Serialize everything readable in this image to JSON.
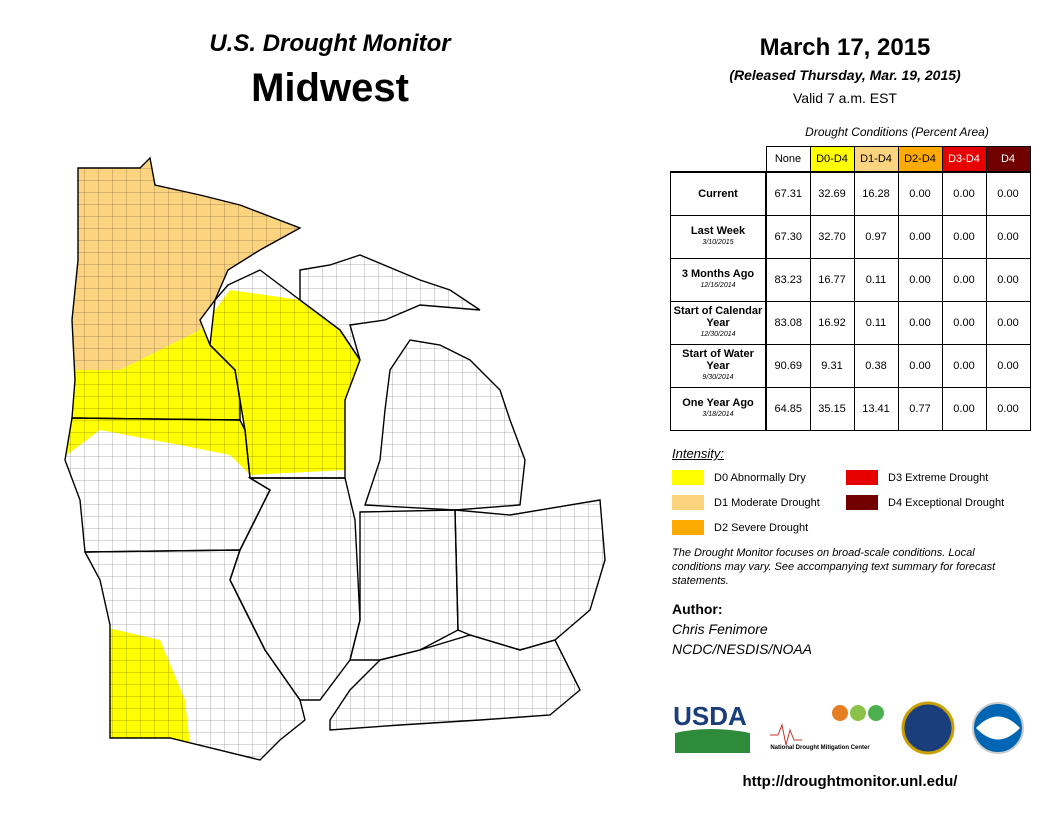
{
  "header": {
    "title": "U.S. Drought Monitor",
    "region": "Midwest",
    "date": "March 17, 2015",
    "released": "(Released Thursday, Mar. 19, 2015)",
    "valid": "Valid  7 a.m. EST"
  },
  "table": {
    "caption": "Drought Conditions (Percent Area)",
    "columns": [
      {
        "label": "None",
        "color": "#ffffff"
      },
      {
        "label": "D0-D4",
        "color": "#ffff00"
      },
      {
        "label": "D1-D4",
        "color": "#fcd37f"
      },
      {
        "label": "D2-D4",
        "color": "#ffaa00"
      },
      {
        "label": "D3-D4",
        "color": "#e60000"
      },
      {
        "label": "D4",
        "color": "#730000"
      }
    ],
    "rows": [
      {
        "label": "Current",
        "values": [
          "67.31",
          "32.69",
          "16.28",
          "0.00",
          "0.00",
          "0.00"
        ]
      },
      {
        "label": "Last Week",
        "date": "3/10/2015",
        "values": [
          "67.30",
          "32.70",
          "0.97",
          "0.00",
          "0.00",
          "0.00"
        ]
      },
      {
        "label": "3 Months Ago",
        "date": "12/16/2014",
        "values": [
          "83.23",
          "16.77",
          "0.11",
          "0.00",
          "0.00",
          "0.00"
        ]
      },
      {
        "label": "Start of Calendar Year",
        "date": "12/30/2014",
        "values": [
          "83.08",
          "16.92",
          "0.11",
          "0.00",
          "0.00",
          "0.00"
        ]
      },
      {
        "label": "Start of Water Year",
        "date": "9/30/2014",
        "values": [
          "90.69",
          "9.31",
          "0.38",
          "0.00",
          "0.00",
          "0.00"
        ]
      },
      {
        "label": "One Year Ago",
        "date": "3/18/2014",
        "values": [
          "64.85",
          "35.15",
          "13.41",
          "0.77",
          "0.00",
          "0.00"
        ]
      }
    ]
  },
  "legend": {
    "title": "Intensity:",
    "items": [
      {
        "label": "D0 Abnormally Dry",
        "color": "#ffff00"
      },
      {
        "label": "D1 Moderate Drought",
        "color": "#fcd37f"
      },
      {
        "label": "D2 Severe Drought",
        "color": "#ffaa00"
      },
      {
        "label": "D3 Extreme Drought",
        "color": "#e60000"
      },
      {
        "label": "D4 Exceptional Drought",
        "color": "#730000"
      }
    ]
  },
  "note": "The Drought Monitor focuses on broad-scale conditions. Local conditions may vary. See accompanying text summary for forecast statements.",
  "author": {
    "heading": "Author:",
    "name": "Chris Fenimore",
    "org": "NCDC/NESDIS/NOAA"
  },
  "logos": {
    "usda": "USDA",
    "ndmc": "National Drought Mitigation Center"
  },
  "url": "http://droughtmonitor.unl.edu/"
}
